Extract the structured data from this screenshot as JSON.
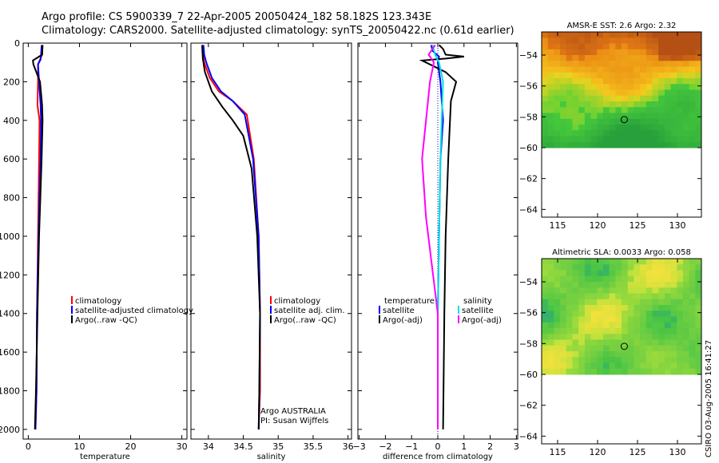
{
  "header": {
    "title_line1": "Argo profile: CS 5900339_7 22-Apr-2005 20050424_182 58.182S 123.343E",
    "title_line2": "Climatology: CARS2000. Satellite-adjusted climatology: synTS_20050422.nc (0.61d earlier)"
  },
  "footer": {
    "stamp": "CSIRO 03-Aug-2005 16:41:27"
  },
  "colors": {
    "climatology": "#ff0000",
    "satellite": "#0000ff",
    "argo": "#000000",
    "sal_satellite": "#00e0e0",
    "sal_argo": "#ff00ff"
  },
  "chart_data": [
    {
      "name": "temperature-profile",
      "type": "line",
      "xlabel": "temperature",
      "ylabel": "",
      "xlim": [
        -1,
        31
      ],
      "ylim": [
        2050,
        0
      ],
      "xticks": [
        0,
        10,
        20,
        30
      ],
      "yticks": [
        0,
        200,
        400,
        600,
        800,
        1000,
        1200,
        1400,
        1600,
        1800,
        2000
      ],
      "legend": [
        "climatology",
        "satellite-adjusted climatology",
        "Argo(..raw -QC)"
      ],
      "series": [
        {
          "name": "climatology",
          "color": "#ff0000",
          "x": [
            2.8,
            2.7,
            2.3,
            1.9,
            1.9,
            1.8,
            2.2,
            2.1,
            1.9,
            1.7,
            1.6,
            1.4
          ],
          "y": [
            10,
            60,
            85,
            110,
            200,
            320,
            400,
            600,
            1000,
            1400,
            1800,
            2000
          ]
        },
        {
          "name": "satellite",
          "color": "#0000ff",
          "x": [
            2.6,
            2.5,
            2.4,
            1.9,
            2.1,
            2.4,
            2.5,
            2.4,
            2.0,
            1.7,
            1.6,
            1.4
          ],
          "y": [
            10,
            60,
            85,
            110,
            200,
            320,
            400,
            600,
            1000,
            1400,
            1800,
            2000
          ]
        },
        {
          "name": "argo",
          "color": "#000000",
          "x": [
            2.8,
            2.7,
            0.9,
            1.0,
            2.3,
            2.7,
            2.8,
            2.6,
            2.1,
            1.8,
            1.5,
            1.3
          ],
          "y": [
            10,
            60,
            90,
            110,
            200,
            320,
            400,
            600,
            1000,
            1400,
            1800,
            2000
          ]
        }
      ]
    },
    {
      "name": "salinity-profile",
      "type": "line",
      "xlabel": "salinity",
      "xlim": [
        33.75,
        36.05
      ],
      "ylim": [
        2050,
        0
      ],
      "xticks": [
        34,
        34.5,
        35,
        35.5,
        36
      ],
      "legend": [
        "climatology",
        "satellite adj. clim.",
        "Argo(..raw -QC)"
      ],
      "annotations": [
        "Argo AUSTRALIA",
        "PI: Susan Wijffels"
      ],
      "series": [
        {
          "name": "climatology",
          "color": "#ff0000",
          "x": [
            33.92,
            33.92,
            33.94,
            34.02,
            34.15,
            34.35,
            34.55,
            34.65,
            34.72,
            34.74,
            34.74,
            34.72
          ],
          "y": [
            10,
            60,
            100,
            180,
            250,
            300,
            370,
            600,
            1000,
            1400,
            1800,
            2000
          ]
        },
        {
          "name": "satellite",
          "color": "#0000ff",
          "x": [
            33.93,
            33.94,
            33.97,
            34.05,
            34.18,
            34.35,
            34.52,
            34.64,
            34.72,
            34.74,
            34.73,
            34.72
          ],
          "y": [
            10,
            60,
            100,
            180,
            250,
            300,
            370,
            600,
            1000,
            1400,
            1800,
            2000
          ]
        },
        {
          "name": "argo",
          "color": "#000000",
          "x": [
            33.91,
            33.92,
            33.95,
            34.05,
            34.2,
            34.35,
            34.5,
            34.62,
            34.7,
            34.74,
            34.73,
            34.72
          ],
          "y": [
            10,
            80,
            150,
            250,
            330,
            400,
            480,
            650,
            1000,
            1400,
            1800,
            2000
          ]
        }
      ]
    },
    {
      "name": "difference-profile",
      "type": "line",
      "xlabel": "difference from climatology",
      "xlim": [
        -3.05,
        3.05
      ],
      "ylim": [
        2050,
        0
      ],
      "xticks": [
        -3,
        -2,
        -1,
        0,
        1,
        2,
        3
      ],
      "legend": [
        "temperature",
        "satellite",
        "Argo(-adj)",
        "salinity",
        "satellite",
        "Argo(-adj)"
      ],
      "series": [
        {
          "name": "temperature satellite",
          "color": "#0000ff",
          "x": [
            -0.25,
            -0.2,
            0.05,
            0.0,
            0.1,
            0.2,
            0.1,
            0.05,
            0.0,
            0.0
          ],
          "y": [
            10,
            40,
            70,
            100,
            200,
            400,
            600,
            1000,
            1400,
            2000
          ]
        },
        {
          "name": "temperature argo",
          "color": "#000000",
          "x": [
            0.05,
            0.2,
            0.3,
            1.0,
            0.3,
            -0.6,
            0.3,
            0.7,
            0.5,
            0.4,
            0.3,
            0.25,
            0.2
          ],
          "y": [
            10,
            30,
            60,
            70,
            80,
            90,
            150,
            200,
            300,
            600,
            1000,
            1400,
            2000
          ]
        },
        {
          "name": "salinity satellite",
          "color": "#00e0e0",
          "x": [
            -0.2,
            -0.1,
            0.05,
            0.2,
            0.15,
            0.1,
            0.05,
            0.0,
            0.0
          ],
          "y": [
            10,
            60,
            100,
            200,
            400,
            600,
            1000,
            1400,
            2000
          ]
        },
        {
          "name": "salinity argo",
          "color": "#ff00ff",
          "x": [
            -0.1,
            -0.35,
            -0.15,
            -0.3,
            -0.6,
            -0.45,
            0.0,
            0.0
          ],
          "y": [
            10,
            60,
            100,
            200,
            600,
            900,
            1400,
            2000
          ]
        }
      ]
    },
    {
      "name": "sst-map",
      "type": "heatmap",
      "title": "AMSR-E SST: 2.6 Argo: 2.32",
      "xlim": [
        113,
        133
      ],
      "ylim": [
        -64.5,
        -52.5
      ],
      "xticks": [
        115,
        120,
        125,
        130
      ],
      "yticks": [
        -54,
        -56,
        -58,
        -60,
        -62,
        -64
      ],
      "data_ylim": [
        -60,
        -52.5
      ],
      "marker": {
        "lon": 123.343,
        "lat": -58.182
      }
    },
    {
      "name": "sla-map",
      "type": "heatmap",
      "title": "Altimetric SLA: 0.0033 Argo: 0.058",
      "xlim": [
        113,
        133
      ],
      "ylim": [
        -64.5,
        -52.5
      ],
      "xticks": [
        115,
        120,
        125,
        130
      ],
      "yticks": [
        -54,
        -56,
        -58,
        -60,
        -62,
        -64
      ],
      "data_ylim": [
        -60,
        -52.5
      ],
      "marker": {
        "lon": 123.343,
        "lat": -58.182
      }
    }
  ]
}
